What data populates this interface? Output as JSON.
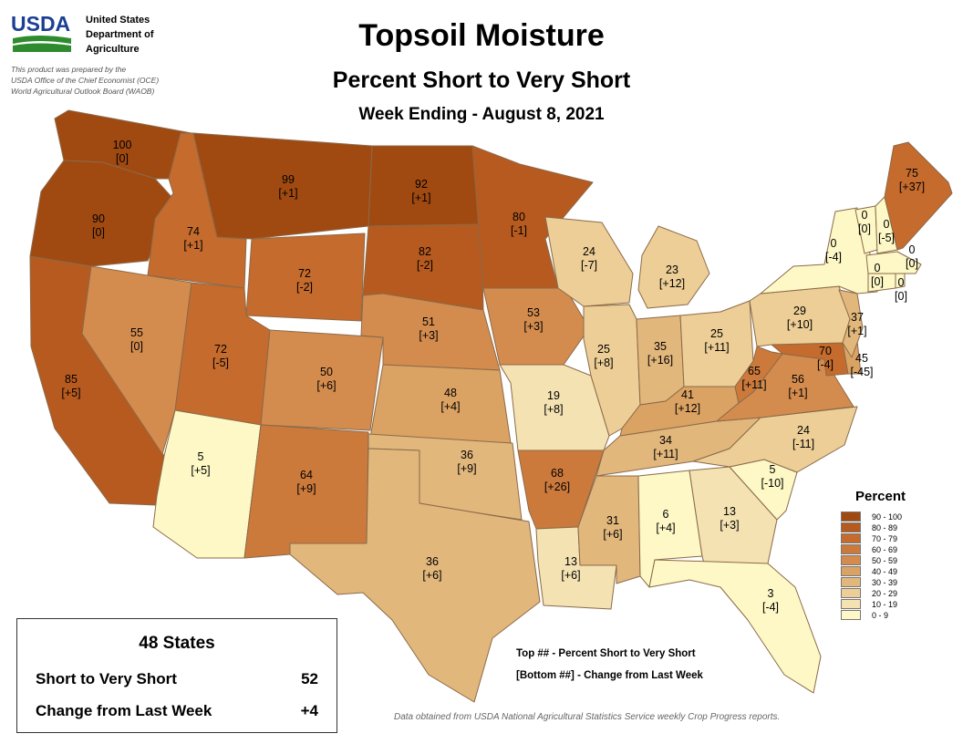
{
  "header": {
    "agency_lines": [
      "United States",
      "Department of",
      "Agriculture"
    ],
    "logo_text": "USDA",
    "prepared_lines": [
      "This product was prepared by the",
      "USDA Office of the Chief Economist (OCE)",
      "World Agricultural Outlook Board (WAOB)"
    ],
    "title": "Topsoil Moisture",
    "subtitle": "Percent Short to Very Short",
    "week": "Week Ending - August 8, 2021"
  },
  "colors": {
    "logo_blue": "#1c3f94",
    "logo_green": "#2e8b2e",
    "state_border": "#8a6a4a"
  },
  "legend": {
    "title": "Percent",
    "bins": [
      {
        "label": "90 - 100",
        "color": "#a04a12"
      },
      {
        "label": "80 - 89",
        "color": "#b65a1f"
      },
      {
        "label": "70 - 79",
        "color": "#c46b2d"
      },
      {
        "label": "60 - 69",
        "color": "#cc7a3c"
      },
      {
        "label": "50 - 59",
        "color": "#d48c4e"
      },
      {
        "label": "40 - 49",
        "color": "#dba363"
      },
      {
        "label": "30 - 39",
        "color": "#e2b77c"
      },
      {
        "label": "20 - 29",
        "color": "#ecce96"
      },
      {
        "label": "10 - 19",
        "color": "#f4e2b2"
      },
      {
        "label": "0 - 9",
        "color": "#fdf8c6"
      }
    ]
  },
  "states": {
    "WA": {
      "value": "100",
      "change": "[0]"
    },
    "OR": {
      "value": "90",
      "change": "[0]"
    },
    "CA": {
      "value": "85",
      "change": "[+5]"
    },
    "ID": {
      "value": "74",
      "change": "[+1]"
    },
    "NV": {
      "value": "55",
      "change": "[0]"
    },
    "MT": {
      "value": "99",
      "change": "[+1]"
    },
    "WY": {
      "value": "72",
      "change": "[-2]"
    },
    "UT": {
      "value": "72",
      "change": "[-5]"
    },
    "AZ": {
      "value": "5",
      "change": "[+5]"
    },
    "CO": {
      "value": "50",
      "change": "[+6]"
    },
    "NM": {
      "value": "64",
      "change": "[+9]"
    },
    "ND": {
      "value": "92",
      "change": "[+1]"
    },
    "SD": {
      "value": "82",
      "change": "[-2]"
    },
    "NE": {
      "value": "51",
      "change": "[+3]"
    },
    "KS": {
      "value": "48",
      "change": "[+4]"
    },
    "OK": {
      "value": "36",
      "change": "[+9]"
    },
    "TX": {
      "value": "36",
      "change": "[+6]"
    },
    "MN": {
      "value": "80",
      "change": "[-1]"
    },
    "IA": {
      "value": "53",
      "change": "[+3]"
    },
    "MO": {
      "value": "19",
      "change": "[+8]"
    },
    "AR": {
      "value": "68",
      "change": "[+26]"
    },
    "LA": {
      "value": "13",
      "change": "[+6]"
    },
    "WI": {
      "value": "24",
      "change": "[-7]"
    },
    "IL": {
      "value": "25",
      "change": "[+8]"
    },
    "MI": {
      "value": "23",
      "change": "[+12]"
    },
    "IN": {
      "value": "35",
      "change": "[+16]"
    },
    "OH": {
      "value": "25",
      "change": "[+11]"
    },
    "KY": {
      "value": "41",
      "change": "[+12]"
    },
    "TN": {
      "value": "34",
      "change": "[+11]"
    },
    "MS": {
      "value": "31",
      "change": "[+6]"
    },
    "AL": {
      "value": "6",
      "change": "[+4]"
    },
    "GA": {
      "value": "13",
      "change": "[+3]"
    },
    "FL": {
      "value": "3",
      "change": "[-4]"
    },
    "SC": {
      "value": "5",
      "change": "[-10]"
    },
    "NC": {
      "value": "24",
      "change": "[-11]"
    },
    "VA": {
      "value": "56",
      "change": "[+1]"
    },
    "WV": {
      "value": "65",
      "change": "[+11]"
    },
    "MD": {
      "value": "70",
      "change": "[-4]"
    },
    "DE": {
      "value": "45",
      "change": "[-45]"
    },
    "PA": {
      "value": "29",
      "change": "[+10]"
    },
    "NJ": {
      "value": "37",
      "change": "[+1]"
    },
    "NY": {
      "value": "0",
      "change": "[-4]"
    },
    "VT": {
      "value": "0",
      "change": "[0]"
    },
    "NH": {
      "value": "0",
      "change": "[-5]"
    },
    "ME": {
      "value": "75",
      "change": "[+37]"
    },
    "MA": {
      "value": "0",
      "change": "[0]"
    },
    "CT": {
      "value": "0",
      "change": "[0]"
    },
    "RI": {
      "value": "0",
      "change": "[0]"
    }
  },
  "summary": {
    "title": "48 States",
    "rows": [
      {
        "label": "Short to Very Short",
        "value": "52"
      },
      {
        "label": "Change from Last Week",
        "value": "+4"
      }
    ]
  },
  "notes": {
    "line1": "Top ## - Percent Short to Very Short",
    "line2": "[Bottom ##] - Change from Last Week",
    "source": "Data obtained from USDA National Agricultural Statistics Service weekly Crop Progress reports."
  }
}
